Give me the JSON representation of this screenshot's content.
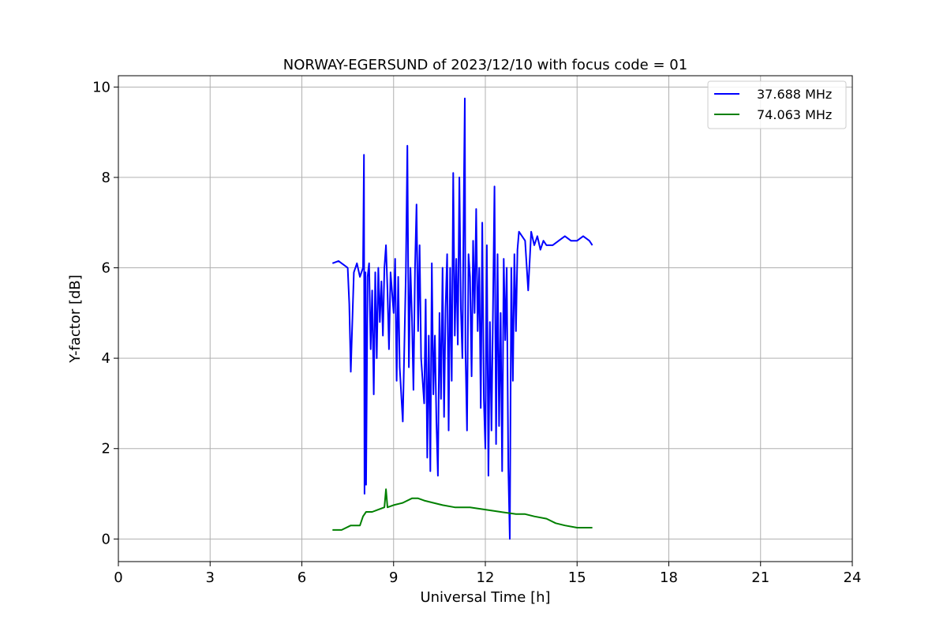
{
  "chart_data": {
    "type": "line",
    "title": "NORWAY-EGERSUND of 2023/12/10 with focus code = 01",
    "xlabel": "Universal Time [h]",
    "ylabel": "Y-factor [dB]",
    "xlim": [
      0,
      24
    ],
    "ylim": [
      -0.5,
      10.25
    ],
    "xticks": [
      0,
      3,
      6,
      9,
      12,
      15,
      18,
      21,
      24
    ],
    "yticks": [
      0,
      2,
      4,
      6,
      8,
      10
    ],
    "grid": true,
    "legend_position": "top-right",
    "series": [
      {
        "name": "37.688 MHz",
        "color": "#0000ff",
        "x": [
          7.0,
          7.2,
          7.4,
          7.5,
          7.55,
          7.6,
          7.7,
          7.8,
          7.9,
          8.0,
          8.03,
          8.05,
          8.08,
          8.1,
          8.15,
          8.2,
          8.25,
          8.3,
          8.35,
          8.4,
          8.45,
          8.5,
          8.55,
          8.6,
          8.65,
          8.7,
          8.75,
          8.8,
          8.85,
          8.9,
          9.0,
          9.05,
          9.1,
          9.15,
          9.2,
          9.3,
          9.4,
          9.45,
          9.5,
          9.55,
          9.6,
          9.65,
          9.7,
          9.75,
          9.8,
          9.85,
          9.9,
          10.0,
          10.05,
          10.1,
          10.15,
          10.2,
          10.25,
          10.3,
          10.35,
          10.4,
          10.45,
          10.5,
          10.55,
          10.6,
          10.65,
          10.7,
          10.75,
          10.8,
          10.85,
          10.9,
          10.95,
          11.0,
          11.05,
          11.1,
          11.15,
          11.2,
          11.25,
          11.3,
          11.33,
          11.35,
          11.4,
          11.45,
          11.5,
          11.55,
          11.6,
          11.65,
          11.7,
          11.75,
          11.8,
          11.85,
          11.9,
          11.95,
          12.0,
          12.05,
          12.1,
          12.15,
          12.2,
          12.25,
          12.3,
          12.35,
          12.4,
          12.45,
          12.5,
          12.55,
          12.6,
          12.65,
          12.7,
          12.75,
          12.8,
          12.85,
          12.9,
          12.95,
          13.0,
          13.05,
          13.1,
          13.2,
          13.3,
          13.4,
          13.5,
          13.6,
          13.7,
          13.8,
          13.9,
          14.0,
          14.2,
          14.4,
          14.6,
          14.8,
          15.0,
          15.2,
          15.4,
          15.5
        ],
        "y": [
          6.1,
          6.15,
          6.05,
          6.0,
          5.2,
          3.7,
          5.9,
          6.1,
          5.8,
          6.0,
          8.5,
          1.0,
          5.9,
          1.2,
          5.8,
          6.1,
          4.2,
          5.5,
          3.2,
          5.9,
          4.0,
          6.0,
          4.8,
          5.7,
          4.5,
          6.0,
          6.5,
          5.5,
          4.2,
          5.9,
          5.0,
          6.2,
          3.5,
          5.8,
          3.8,
          2.6,
          5.9,
          8.7,
          3.8,
          6.0,
          4.9,
          3.3,
          6.0,
          7.4,
          4.6,
          6.5,
          4.0,
          3.0,
          5.3,
          1.8,
          4.5,
          1.5,
          6.1,
          3.2,
          4.5,
          2.6,
          1.4,
          5.0,
          3.1,
          6.0,
          2.7,
          5.1,
          6.3,
          2.4,
          6.0,
          3.5,
          8.1,
          4.5,
          6.2,
          4.3,
          8.0,
          5.1,
          4.0,
          7.9,
          9.75,
          4.2,
          2.4,
          6.3,
          5.8,
          3.6,
          6.6,
          5.0,
          7.3,
          4.6,
          6.0,
          2.9,
          7.0,
          3.1,
          2.0,
          6.5,
          1.4,
          4.8,
          2.4,
          5.1,
          7.8,
          2.1,
          6.3,
          2.5,
          5.0,
          1.5,
          6.2,
          4.4,
          6.0,
          1.6,
          0.0,
          6.0,
          3.5,
          6.3,
          4.6,
          6.4,
          6.8,
          6.7,
          6.6,
          5.5,
          6.8,
          6.5,
          6.7,
          6.4,
          6.6,
          6.5,
          6.5,
          6.6,
          6.7,
          6.6,
          6.6,
          6.7,
          6.6,
          6.5
        ]
      },
      {
        "name": "74.063 MHz",
        "color": "#008000",
        "x": [
          7.0,
          7.3,
          7.6,
          7.9,
          8.0,
          8.1,
          8.3,
          8.5,
          8.7,
          8.75,
          8.8,
          9.0,
          9.3,
          9.6,
          9.8,
          10.0,
          10.3,
          10.6,
          11.0,
          11.5,
          12.0,
          12.5,
          13.0,
          13.3,
          13.6,
          14.0,
          14.3,
          14.6,
          15.0,
          15.3,
          15.5
        ],
        "y": [
          0.2,
          0.2,
          0.3,
          0.3,
          0.5,
          0.6,
          0.6,
          0.65,
          0.7,
          1.1,
          0.7,
          0.75,
          0.8,
          0.9,
          0.9,
          0.85,
          0.8,
          0.75,
          0.7,
          0.7,
          0.65,
          0.6,
          0.55,
          0.55,
          0.5,
          0.45,
          0.35,
          0.3,
          0.25,
          0.25,
          0.25
        ]
      }
    ]
  }
}
